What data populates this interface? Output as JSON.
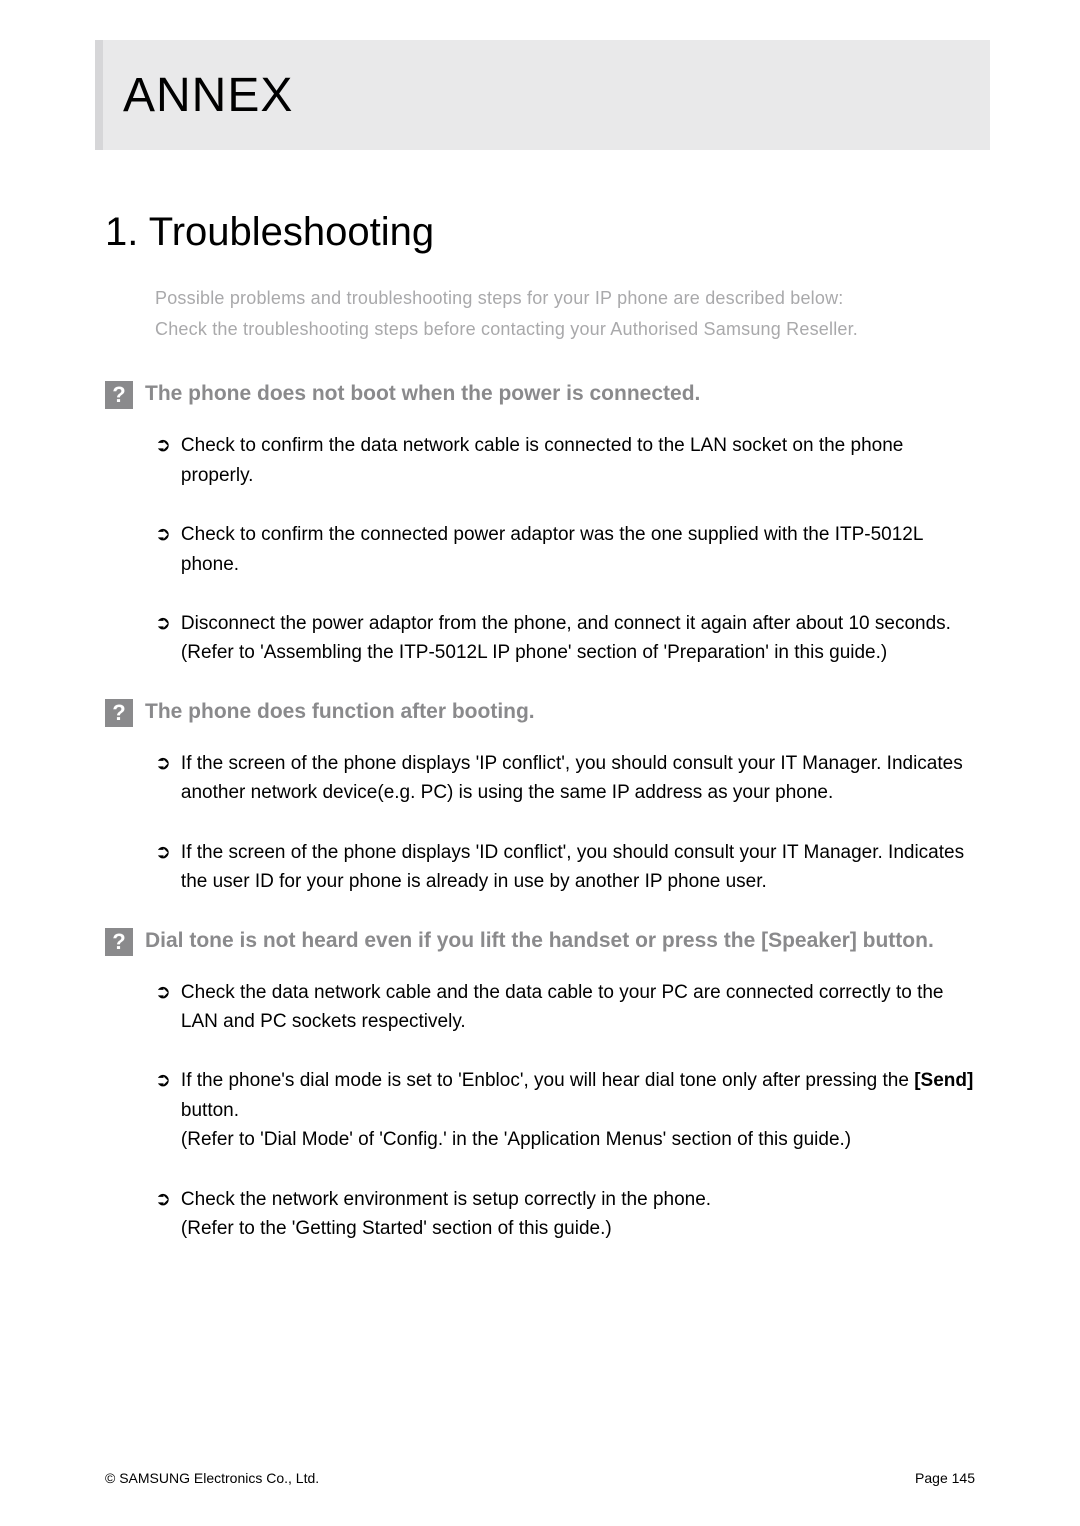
{
  "header": {
    "title": "ANNEX"
  },
  "section": {
    "title": "1. Troubleshooting",
    "intro_line1": "Possible problems and troubleshooting steps for your IP phone are described below:",
    "intro_line2": "Check the troubleshooting steps before contacting your Authorised Samsung Reseller."
  },
  "qa": [
    {
      "icon": "?",
      "question": "The phone does not boot when the power is connected.",
      "bullets": [
        "Check to confirm the data network cable  is connected to the LAN socket on the phone properly.",
        "Check to confirm the connected power adaptor was the one supplied with the ITP-5012L phone.",
        "Disconnect the power adaptor from the phone, and connect it again after about 10 seconds.\n(Refer to 'Assembling the ITP-5012L IP phone' section of 'Preparation' in this guide.)"
      ]
    },
    {
      "icon": "?",
      "question": "The phone does function after booting.",
      "bullets": [
        "If the screen of the phone displays 'IP conflict', you should consult your IT Manager. Indicates another network device(e.g. PC) is using the same IP address as your phone.",
        "If the screen of the phone displays 'ID conflict', you should consult your IT Manager. Indicates the user ID for your phone is already in use by another IP phone user."
      ]
    },
    {
      "icon": "?",
      "question": "Dial tone is not heard even if you lift the handset or press the [Speaker] button.",
      "bullets": [
        "Check the data network cable and the data cable to your PC are connected correctly to the LAN and PC sockets respectively.",
        "If the phone's dial mode is set to 'Enbloc', you will hear dial tone only after pressing the [Send] button.\n(Refer to 'Dial Mode' of 'Config.' in the 'Application Menus' section of this guide.)",
        "Check the network environment is setup correctly in the phone.\n(Refer to the 'Getting Started' section of this guide.)"
      ]
    }
  ],
  "bullet_marker": "➲",
  "footer": {
    "copyright": "© SAMSUNG Electronics Co., Ltd.",
    "page": "Page 145"
  }
}
